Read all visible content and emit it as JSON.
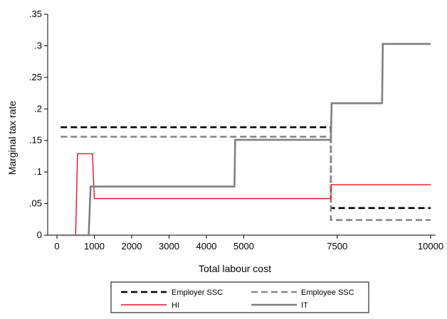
{
  "chart_data": {
    "type": "line",
    "title": "",
    "xlabel": "Total labour cost",
    "ylabel": "Marginal tax rate",
    "xlim": [
      0,
      10000
    ],
    "ylim": [
      0,
      0.35
    ],
    "x_tick_values": [
      0,
      1000,
      2000,
      3000,
      4000,
      5000,
      7500,
      10000
    ],
    "x_tick_labels": [
      "0",
      "1000",
      "2000",
      "3000",
      "4000",
      "5000",
      "7500",
      "10000"
    ],
    "y_tick_values": [
      0,
      0.05,
      0.1,
      0.15,
      0.2,
      0.25,
      0.3,
      0.35
    ],
    "y_tick_labels": [
      "0",
      ".05",
      ".1",
      ".15",
      ".2",
      ".25",
      ".3",
      ".35"
    ],
    "grid": false,
    "legend_position": "bottom",
    "series": [
      {
        "name": "Employer SSC",
        "color": "#000000",
        "dash": "dashed",
        "x": [
          100,
          7330,
          7330,
          10000
        ],
        "y": [
          0.171,
          0.171,
          0.043,
          0.043
        ]
      },
      {
        "name": "Employee SSC",
        "color": "#888888",
        "dash": "dashed",
        "x": [
          100,
          7330,
          7330,
          10000
        ],
        "y": [
          0.156,
          0.156,
          0.024,
          0.024
        ]
      },
      {
        "name": "HI",
        "color": "#e8141c",
        "dash": "solid",
        "x": [
          100,
          500,
          550,
          950,
          1000,
          7330,
          7340,
          10000
        ],
        "y": [
          0,
          0,
          0.129,
          0.129,
          0.058,
          0.058,
          0.08,
          0.08
        ]
      },
      {
        "name": "IT",
        "color": "#808080",
        "dash": "solid",
        "x": [
          100,
          850,
          900,
          4750,
          4770,
          7330,
          7350,
          8700,
          8720,
          10000
        ],
        "y": [
          0,
          0,
          0.077,
          0.077,
          0.151,
          0.151,
          0.209,
          0.209,
          0.303,
          0.303
        ]
      }
    ]
  }
}
